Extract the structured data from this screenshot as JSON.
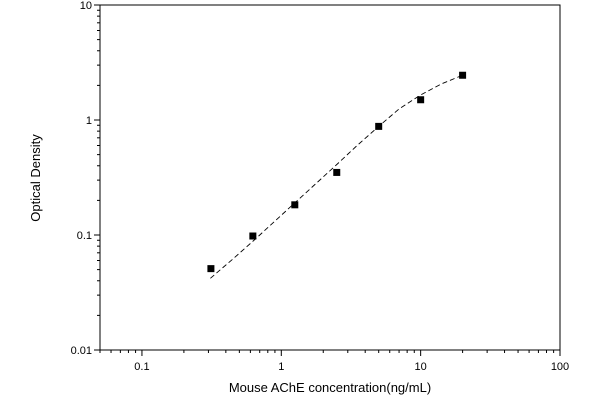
{
  "chart_data": {
    "type": "scatter",
    "title": "",
    "xlabel": "Mouse AChE concentration(ng/mL)",
    "ylabel": "Optical Density",
    "xscale": "log",
    "yscale": "log",
    "xlim": [
      0.05,
      100
    ],
    "ylim": [
      0.01,
      10
    ],
    "x_ticks": [
      0.1,
      1,
      10,
      100
    ],
    "x_tick_labels": [
      "0.1",
      "1",
      "10",
      "100"
    ],
    "y_ticks": [
      0.01,
      0.1,
      1,
      10
    ],
    "y_tick_labels": [
      "0.01",
      "0.1",
      "1",
      "10"
    ],
    "grid": false,
    "legend": "none",
    "series": [
      {
        "marker": "square",
        "color": "#000000",
        "x": [
          0.3125,
          0.625,
          1.25,
          2.5,
          5,
          10,
          20
        ],
        "y": [
          0.051,
          0.098,
          0.183,
          0.35,
          0.88,
          1.5,
          2.45
        ]
      }
    ],
    "fit_curve": {
      "style": "dashed",
      "color": "#000000",
      "x": [
        0.31,
        0.45,
        0.65,
        0.9,
        1.25,
        1.8,
        2.5,
        3.5,
        5,
        7,
        10,
        14,
        20
      ],
      "y": [
        0.042,
        0.062,
        0.092,
        0.132,
        0.19,
        0.285,
        0.41,
        0.6,
        0.88,
        1.25,
        1.65,
        2.05,
        2.45
      ]
    }
  }
}
